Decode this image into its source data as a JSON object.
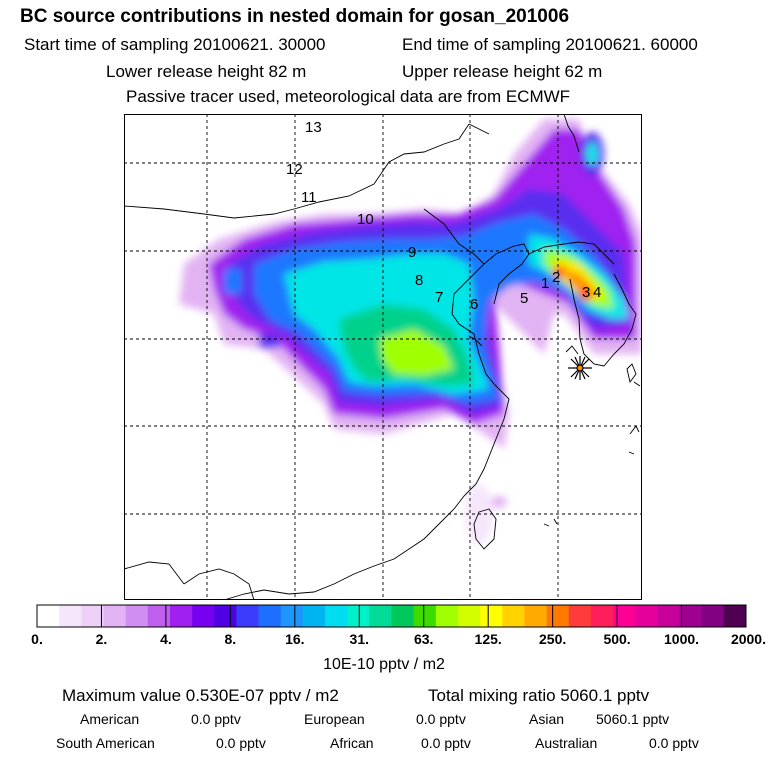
{
  "header": {
    "title": "BC  source contributions in nested domain for gosan_201006",
    "start_time": "Start time of sampling 20100621. 30000",
    "end_time": "End time of sampling 20100621. 60000",
    "lower_height": "Lower release height   82 m",
    "upper_height": "Upper release height   62 m",
    "tracer_note": "Passive tracer used, meteorological data are from ECMWF"
  },
  "map": {
    "trajectory_labels": [
      "13",
      "12",
      "11",
      "10",
      "9",
      "8",
      "7",
      "6",
      "5",
      "1",
      "2",
      "3",
      "4"
    ],
    "receptor_marker": "star-receptor",
    "grid": "dashed lat/lon lines",
    "field_colors": [
      "#e7b2ff",
      "#a000f0",
      "#5a2df0",
      "#1e78ff",
      "#00e6e6",
      "#00d28c",
      "#a0ff00",
      "#ffe600",
      "#ff9100",
      "#ff3c00"
    ]
  },
  "colorbar": {
    "colors": [
      "#ffffff",
      "#f6e6fb",
      "#eed1f8",
      "#e2b3f3",
      "#d08ff0",
      "#bf5ff0",
      "#a020f0",
      "#7800f0",
      "#5000e6",
      "#3c3cff",
      "#1e6eff",
      "#1e96ff",
      "#00b4f0",
      "#00dcf0",
      "#00f0c8",
      "#00dc96",
      "#00c85a",
      "#3cdc00",
      "#a0ff00",
      "#d2ff00",
      "#ffff00",
      "#ffd200",
      "#ffaa00",
      "#ff7800",
      "#ff3c3c",
      "#ff1e5a",
      "#ff0096",
      "#e6009b",
      "#c8009b",
      "#a00091",
      "#820082",
      "#500050"
    ],
    "ticks": [
      "0.",
      "2.",
      "4.",
      "8.",
      "16.",
      "31.",
      "63.",
      "125.",
      "250.",
      "500.",
      "1000.",
      "2000."
    ],
    "unit": "10E-10 pptv / m2"
  },
  "summary": {
    "max_value": "Maximum value  0.530E-07 pptv / m2",
    "total_mixing": "Total mixing ratio     5060.1 pptv",
    "regions": [
      {
        "name": "American",
        "value": "0.0 pptv"
      },
      {
        "name": "European",
        "value": "0.0 pptv"
      },
      {
        "name": "Asian",
        "value": "5060.1 pptv"
      },
      {
        "name": "South American",
        "value": "0.0 pptv"
      },
      {
        "name": "African",
        "value": "0.0 pptv"
      },
      {
        "name": "Australian",
        "value": "0.0 pptv"
      }
    ]
  }
}
